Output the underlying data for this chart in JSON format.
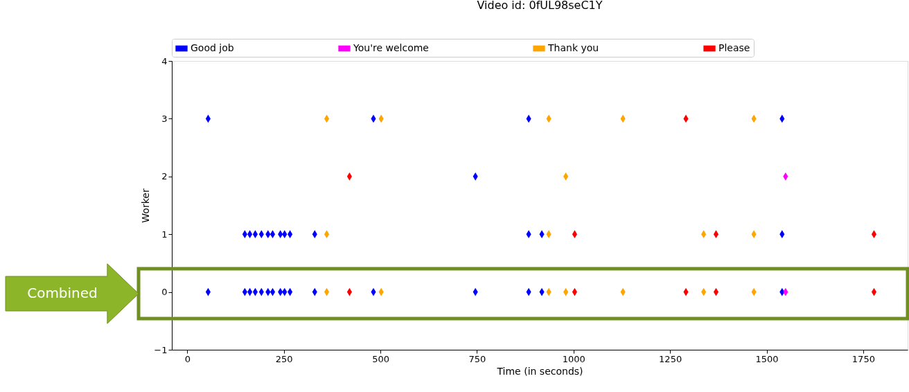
{
  "chart_data": {
    "type": "scatter",
    "title": "Video id: 0fUL98seC1Y",
    "xlabel": "Time (in seconds)",
    "ylabel": "Worker",
    "xlim": [
      -40,
      1865
    ],
    "xticks": [
      0,
      250,
      500,
      750,
      1000,
      1250,
      1500,
      1750
    ],
    "ylim": [
      -1,
      4
    ],
    "yticks": [
      -1,
      0,
      1,
      2,
      3,
      4
    ],
    "marker": "diamond",
    "legend": "top",
    "grid": false,
    "series": [
      {
        "name": "Good job",
        "color": "#0000ff",
        "x": [
          54,
          482,
          884,
          1540,
          746,
          149,
          162,
          176,
          192,
          209,
          221,
          241,
          252,
          266,
          330,
          884,
          918,
          1540,
          54,
          149,
          162,
          176,
          192,
          209,
          221,
          241,
          252,
          266,
          330,
          482,
          746,
          884,
          918,
          1540
        ],
        "values": [
          3,
          3,
          3,
          3,
          2,
          1,
          1,
          1,
          1,
          1,
          1,
          1,
          1,
          1,
          1,
          1,
          1,
          1,
          0,
          0,
          0,
          0,
          0,
          0,
          0,
          0,
          0,
          0,
          0,
          0,
          0,
          0,
          0,
          0
        ]
      },
      {
        "name": "You're welcome",
        "color": "#ff00ff",
        "x": [
          1549,
          1549
        ],
        "values": [
          2,
          0
        ]
      },
      {
        "name": "Thank you",
        "color": "#ffa500",
        "x": [
          361,
          502,
          936,
          1128,
          1467,
          980,
          361,
          936,
          1337,
          1467,
          361,
          502,
          936,
          980,
          1128,
          1337,
          1467
        ],
        "values": [
          3,
          3,
          3,
          3,
          3,
          2,
          1,
          1,
          1,
          1,
          0,
          0,
          0,
          0,
          0,
          0,
          0
        ]
      },
      {
        "name": "Please",
        "color": "#ff0000",
        "x": [
          1291,
          420,
          1003,
          1369,
          1778,
          420,
          1003,
          1291,
          1369,
          1778
        ],
        "values": [
          3,
          2,
          1,
          1,
          1,
          0,
          0,
          0,
          0,
          0
        ]
      }
    ],
    "annotations": [
      "Combined"
    ]
  }
}
